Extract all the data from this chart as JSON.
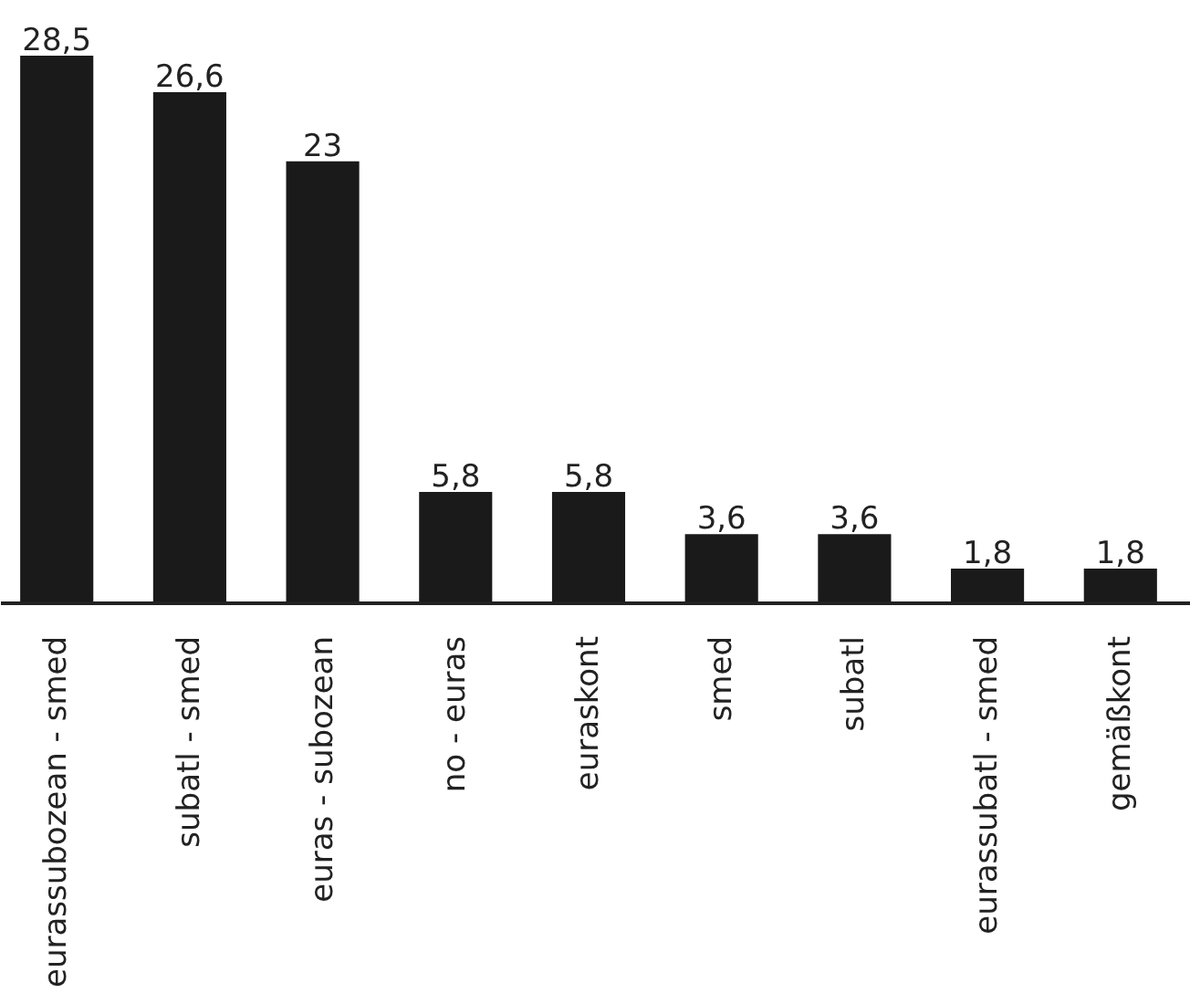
{
  "chart_data": {
    "type": "bar",
    "categories": [
      "eurassubozean - smed",
      "subatl - smed",
      "euras - subozean",
      "no - euras",
      "euraskont",
      "smed",
      "subatl",
      "eurassubatl - smed",
      "gemäßkont"
    ],
    "values": [
      28.5,
      26.6,
      23,
      5.8,
      5.8,
      3.6,
      3.6,
      1.8,
      1.8
    ],
    "value_labels": [
      "28,5",
      "26,6",
      "23",
      "5,8",
      "5,8",
      "3,6",
      "3,6",
      "1,8",
      "1,8"
    ],
    "color": "#1a1a1a"
  }
}
